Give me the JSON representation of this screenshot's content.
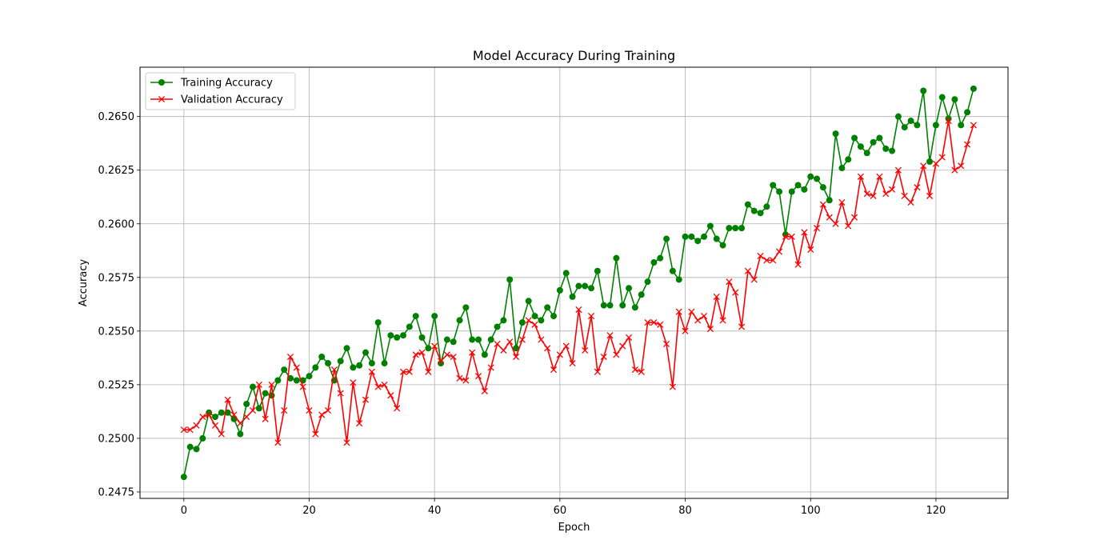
{
  "chart_data": {
    "type": "line",
    "title": "Model Accuracy During Training",
    "xlabel": "Epoch",
    "ylabel": "Accuracy",
    "xlim": [
      -7,
      131.5
    ],
    "ylim": [
      0.2472,
      0.2673
    ],
    "xticks": [
      0,
      20,
      40,
      60,
      80,
      100,
      120
    ],
    "yticks": [
      0.2475,
      0.25,
      0.2525,
      0.255,
      0.2575,
      0.26,
      0.2625,
      0.265
    ],
    "ytick_labels": [
      "0.2475",
      "0.2500",
      "0.2525",
      "0.2550",
      "0.2575",
      "0.2600",
      "0.2625",
      "0.2650"
    ],
    "grid": true,
    "legend_position": "top-left",
    "series": [
      {
        "name": "Training Accuracy",
        "color": "#008000",
        "marker": "circle",
        "values": [
          0.2482,
          0.2496,
          0.2495,
          0.25,
          0.2512,
          0.251,
          0.2512,
          0.2512,
          0.2509,
          0.2502,
          0.2516,
          0.2524,
          0.2514,
          0.2521,
          0.252,
          0.2527,
          0.2532,
          0.2528,
          0.2527,
          0.2527,
          0.2529,
          0.2533,
          0.2538,
          0.2535,
          0.2527,
          0.2536,
          0.2542,
          0.2533,
          0.2534,
          0.254,
          0.2535,
          0.2554,
          0.2535,
          0.2548,
          0.2547,
          0.2548,
          0.2552,
          0.2557,
          0.2547,
          0.2542,
          0.2557,
          0.2535,
          0.2546,
          0.2545,
          0.2555,
          0.2561,
          0.2546,
          0.2546,
          0.2539,
          0.2546,
          0.2552,
          0.2555,
          0.2574,
          0.2542,
          0.2554,
          0.2564,
          0.2557,
          0.2555,
          0.2561,
          0.2557,
          0.2569,
          0.2577,
          0.2566,
          0.2571,
          0.2571,
          0.257,
          0.2578,
          0.2562,
          0.2562,
          0.2584,
          0.2562,
          0.257,
          0.2561,
          0.2567,
          0.2573,
          0.2582,
          0.2584,
          0.2593,
          0.2578,
          0.2574,
          0.2594,
          0.2594,
          0.2592,
          0.2594,
          0.2599,
          0.2593,
          0.259,
          0.2598,
          0.2598,
          0.2598,
          0.2609,
          0.2606,
          0.2605,
          0.2608,
          0.2618,
          0.2615,
          0.2595,
          0.2615,
          0.2618,
          0.2616,
          0.2622,
          0.2621,
          0.2617,
          0.2611,
          0.2642,
          0.2626,
          0.263,
          0.264,
          0.2636,
          0.2633,
          0.2638,
          0.264,
          0.2635,
          0.2634,
          0.265,
          0.2645,
          0.2648,
          0.2646,
          0.2662,
          0.2629,
          0.2646,
          0.2659,
          0.2649,
          0.2658,
          0.2646,
          0.2652,
          0.2663
        ]
      },
      {
        "name": "Validation Accuracy",
        "color": "#ff0000",
        "marker": "x",
        "values": [
          0.2504,
          0.2504,
          0.2506,
          0.251,
          0.2511,
          0.2506,
          0.2502,
          0.2518,
          0.2511,
          0.2507,
          0.251,
          0.2513,
          0.2525,
          0.2509,
          0.2525,
          0.2498,
          0.2513,
          0.2538,
          0.2533,
          0.2524,
          0.2513,
          0.2502,
          0.2511,
          0.2513,
          0.2532,
          0.2521,
          0.2498,
          0.2526,
          0.2507,
          0.2518,
          0.2531,
          0.2524,
          0.2525,
          0.252,
          0.2514,
          0.2531,
          0.2531,
          0.2539,
          0.254,
          0.2531,
          0.2543,
          0.2536,
          0.2539,
          0.2538,
          0.2528,
          0.2527,
          0.254,
          0.2529,
          0.2522,
          0.2533,
          0.2544,
          0.2541,
          0.2545,
          0.2538,
          0.2546,
          0.2555,
          0.2553,
          0.2546,
          0.2542,
          0.2532,
          0.2539,
          0.2543,
          0.2535,
          0.256,
          0.2541,
          0.2557,
          0.2531,
          0.2538,
          0.2548,
          0.2539,
          0.2543,
          0.2547,
          0.2532,
          0.2531,
          0.2554,
          0.2554,
          0.2553,
          0.2544,
          0.2524,
          0.2559,
          0.255,
          0.2559,
          0.2555,
          0.2557,
          0.2551,
          0.2566,
          0.2555,
          0.2573,
          0.2568,
          0.2552,
          0.2578,
          0.2574,
          0.2585,
          0.2583,
          0.2583,
          0.2587,
          0.2594,
          0.2594,
          0.2581,
          0.2596,
          0.2588,
          0.2598,
          0.2609,
          0.2603,
          0.26,
          0.261,
          0.2599,
          0.2603,
          0.2622,
          0.2614,
          0.2613,
          0.2622,
          0.2614,
          0.2616,
          0.2625,
          0.2613,
          0.261,
          0.2617,
          0.2627,
          0.2613,
          0.2628,
          0.2631,
          0.2648,
          0.2625,
          0.2627,
          0.2637,
          0.2646
        ]
      }
    ]
  }
}
